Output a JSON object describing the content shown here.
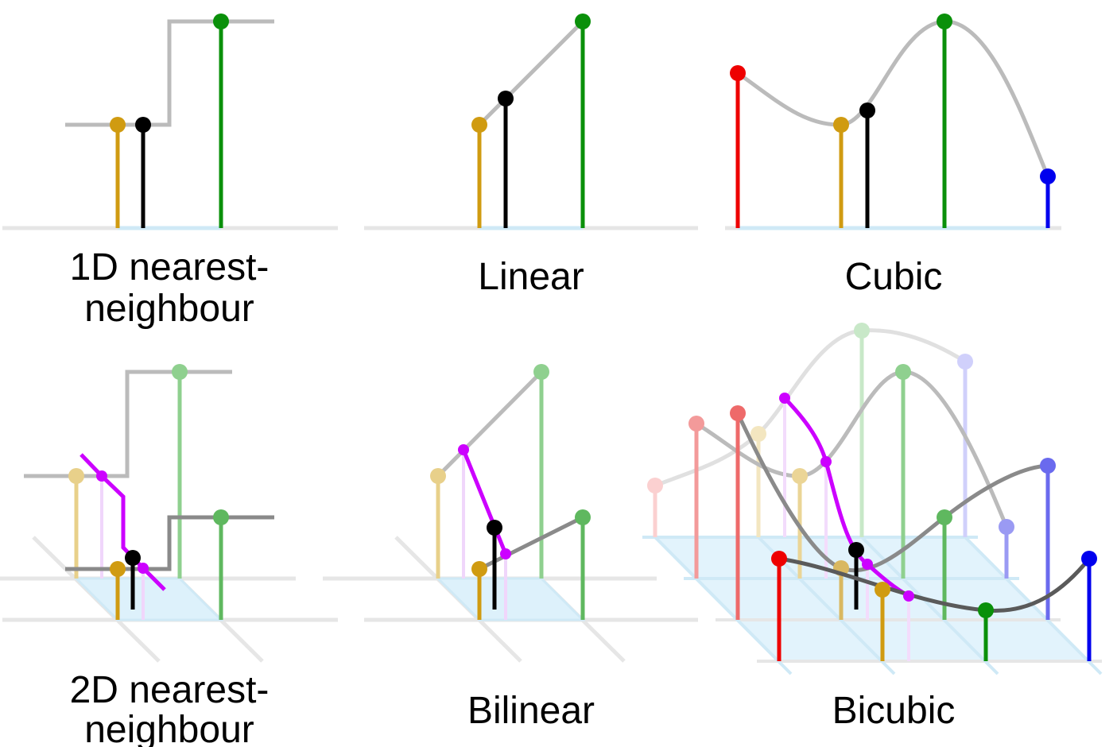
{
  "panels": {
    "nearest_1d": {
      "line1": "1D nearest-",
      "line2": "neighbour"
    },
    "linear": {
      "label": "Linear"
    },
    "cubic": {
      "label": "Cubic"
    },
    "nearest_2d": {
      "line1": "2D nearest-",
      "line2": "neighbour"
    },
    "bilinear": {
      "label": "Bilinear"
    },
    "bicubic": {
      "label": "Bicubic"
    }
  },
  "colors": {
    "sample_gold": "#d09b11",
    "sample_green": "#0a900a",
    "sample_red": "#ee0000",
    "sample_blue": "#0000ee",
    "interpolated": "#000000",
    "intermediate_purple": "#cc00ff",
    "curve_gray": "#bbbbbb",
    "axis_light": "#e6e6e6",
    "grid_fill": "#ddf1fb"
  }
}
